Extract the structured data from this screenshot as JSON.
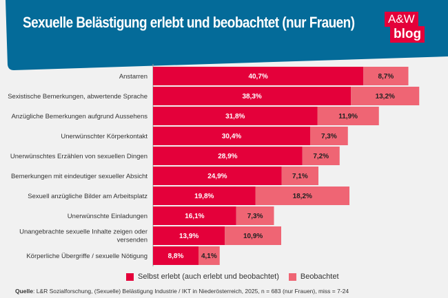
{
  "header": {
    "title": "Sexuelle Belästigung erlebt und beobachtet (nur Frauen)",
    "logo_line1": "A&W",
    "logo_line2": "blog"
  },
  "colors": {
    "header": "#046b99",
    "selbst": "#e4003a",
    "beobachtet": "#ef6574",
    "logo": "#e4003a"
  },
  "chart_data": {
    "type": "bar",
    "orientation": "horizontal",
    "stacked": true,
    "categories": [
      "Anstarren",
      "Sexistische Bemerkungen, abwertende Sprache",
      "Anzügliche Bemerkungen aufgrund Aussehens",
      "Unerwünschter Körperkontakt",
      "Unerwünschtes Erzählen von sexuellen Dingen",
      "Bemerkungen mit eindeutiger sexueller Absicht",
      "Sexuell anzügliche Bilder am Arbeitsplatz",
      "Unerwünschte Einladungen",
      "Unangebrachte sexuelle Inhalte zeigen oder versenden",
      "Körperliche Übergriffe / sexuelle Nötigung"
    ],
    "series": [
      {
        "name": "Selbst erlebt (auch erlebt und beobachtet)",
        "values": [
          40.7,
          38.3,
          31.8,
          30.4,
          28.9,
          24.9,
          19.8,
          16.1,
          13.9,
          8.8
        ],
        "labels": [
          "40,7%",
          "38,3%",
          "31,8%",
          "30,4%",
          "28,9%",
          "24,9%",
          "19,8%",
          "16,1%",
          "13,9%",
          "8,8%"
        ]
      },
      {
        "name": "Beobachtet",
        "values": [
          8.7,
          13.2,
          11.9,
          7.3,
          7.2,
          7.1,
          18.2,
          7.3,
          10.9,
          4.1
        ],
        "labels": [
          "8,7%",
          "13,2%",
          "11,9%",
          "7,3%",
          "7,2%",
          "7,1%",
          "18,2%",
          "7,3%",
          "10,9%",
          "4,1%"
        ]
      }
    ],
    "legend": "bottom"
  },
  "source": {
    "label": "Quelle",
    "text": ": L&R Sozialforschung, (Sexuelle) Belästigung Industrie / IKT in Niederösterreich, 2025, n = 683 (nur Frauen), miss = 7-24"
  }
}
